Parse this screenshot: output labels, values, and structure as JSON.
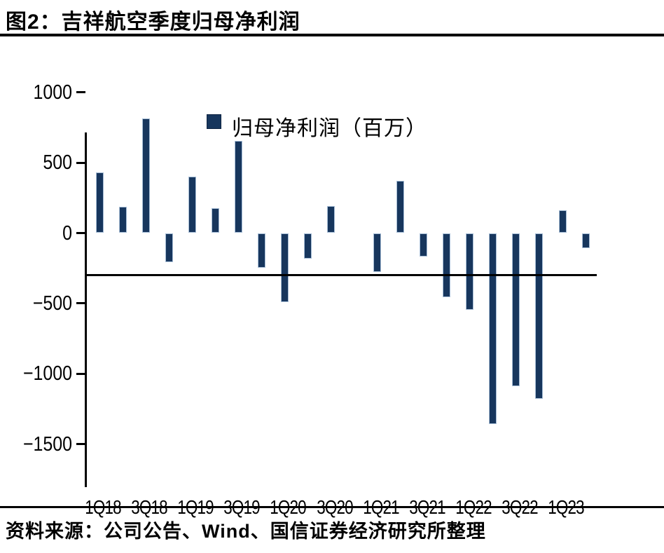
{
  "figure": {
    "title": "图2：吉祥航空季度归母净利润",
    "source": "资料来源：公司公告、Wind、国信证券经济研究所整理"
  },
  "chart_data": {
    "type": "bar",
    "title": "图2：吉祥航空季度归母净利润",
    "legend": [
      "归母净利润（百万）"
    ],
    "legend_position": "top",
    "categories": [
      "1Q18",
      "2Q18",
      "3Q18",
      "4Q18",
      "1Q19",
      "2Q19",
      "3Q19",
      "4Q19",
      "1Q20",
      "2Q20",
      "3Q20",
      "4Q20",
      "1Q21",
      "2Q21",
      "3Q21",
      "4Q21",
      "1Q22",
      "2Q22",
      "3Q22",
      "4Q22",
      "1Q23",
      "2Q23"
    ],
    "values": [
      430,
      185,
      815,
      -205,
      400,
      175,
      655,
      -245,
      -490,
      -180,
      190,
      0,
      -275,
      370,
      -165,
      -455,
      -545,
      -1355,
      -1090,
      -1180,
      160,
      -105
    ],
    "x_tick_labels": [
      "1Q18",
      "3Q18",
      "1Q19",
      "3Q19",
      "1Q20",
      "3Q20",
      "1Q21",
      "3Q21",
      "1Q22",
      "3Q22",
      "1Q23"
    ],
    "y_ticks": [
      1000,
      500,
      0,
      -500,
      -1000,
      -1500
    ],
    "ylim": [
      -1500,
      1000
    ],
    "xlabel": "",
    "ylabel": "",
    "grid": false,
    "bar_color": "#17365d",
    "bar_edge_color": "#a6bdd6",
    "axis_color": "#000000"
  }
}
